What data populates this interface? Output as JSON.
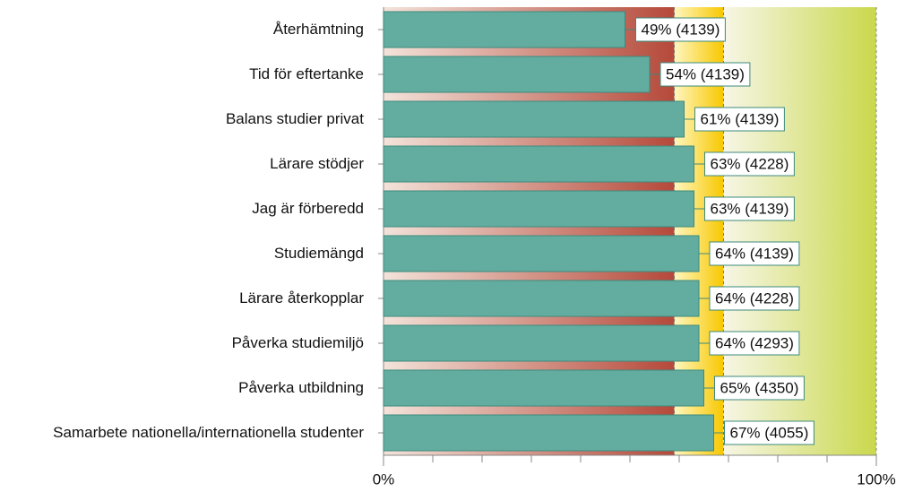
{
  "chart_data": {
    "type": "hbar",
    "categories": [
      "Återhämtning",
      "Tid för eftertanke",
      "Balans studier privat",
      "Lärare stödjer",
      "Jag är förberedd",
      "Studiemängd",
      "Lärare återkopplar",
      "Påverka studiemiljö",
      "Påverka utbildning",
      "Samarbete nationella/internationella studenter"
    ],
    "values": [
      49,
      54,
      61,
      63,
      63,
      64,
      64,
      64,
      65,
      67
    ],
    "value_labels": [
      "49% (4139)",
      "54% (4139)",
      "61% (4139)",
      "63% (4228)",
      "63% (4139)",
      "64% (4139)",
      "64% (4228)",
      "64% (4293)",
      "65% (4350)",
      "67% (4055)"
    ],
    "color": "#62ada0",
    "xlim": [
      0,
      100
    ],
    "xticks": [
      {
        "value": 0,
        "label": "0%"
      },
      {
        "value": 100,
        "label": "100%"
      }
    ],
    "xminorticks": [
      10,
      20,
      30,
      40,
      50,
      60,
      70,
      80,
      90
    ],
    "zones": [
      {
        "from": 0,
        "to": 59,
        "color": "#b5493a"
      },
      {
        "from": 59,
        "to": 69,
        "color": "#f7c800"
      },
      {
        "from": 69,
        "to": 100,
        "color": "#c9d84c"
      }
    ]
  }
}
